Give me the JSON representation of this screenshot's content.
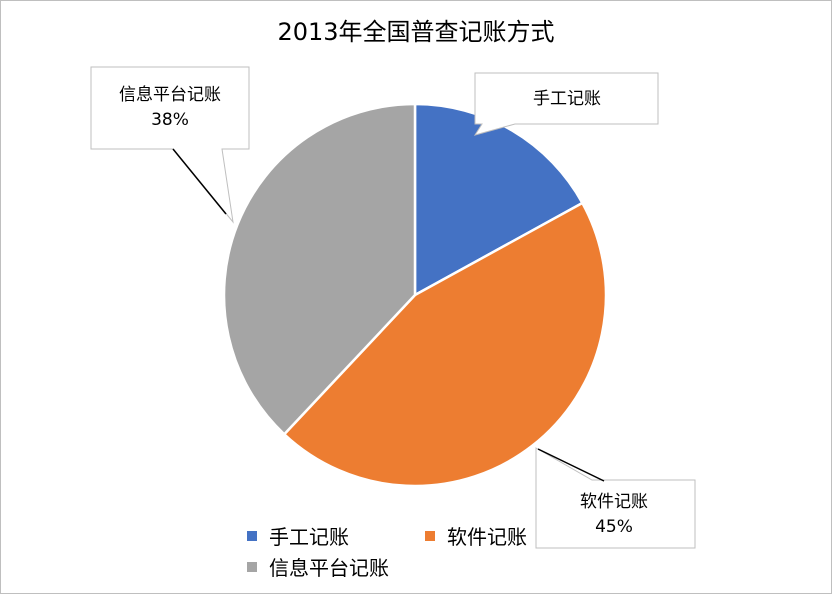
{
  "chart_data": {
    "type": "pie",
    "title": "2013年全国普查记账方式",
    "categories": [
      "手工记账",
      "软件记账",
      "信息平台记账"
    ],
    "values": [
      17,
      45,
      38
    ],
    "colors": [
      "#4472C4",
      "#ED7D31",
      "#A5A5A5"
    ],
    "data_labels": [
      {
        "name": "手工记账",
        "value": ""
      },
      {
        "name": "软件记账",
        "value": "45%"
      },
      {
        "name": "信息平台记账",
        "value": "38%"
      }
    ],
    "legend": {
      "position": "bottom",
      "items": [
        "手工记账",
        "软件记账",
        "信息平台记账"
      ]
    }
  }
}
